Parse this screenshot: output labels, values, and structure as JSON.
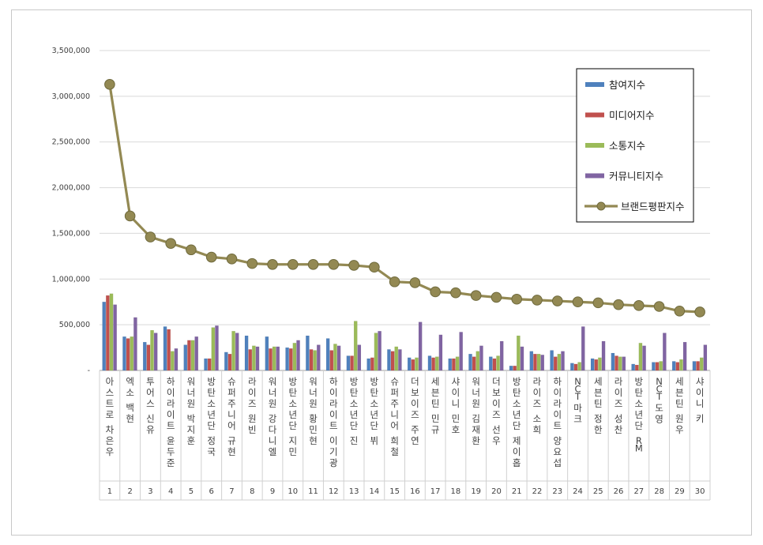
{
  "chart_data": {
    "type": "bar",
    "title": "",
    "xlabel": "",
    "ylabel": "",
    "ylim": [
      0,
      3500000
    ],
    "yticks": [
      0,
      500000,
      1000000,
      1500000,
      2000000,
      2500000,
      3000000,
      3500000
    ],
    "ytick_labels": [
      "-",
      "500,000",
      "1,000,000",
      "1,500,000",
      "2,000,000",
      "2,500,000",
      "3,000,000",
      "3,500,000"
    ],
    "grid": true,
    "legend_position": "top-right",
    "categories": [
      "1",
      "2",
      "3",
      "4",
      "5",
      "6",
      "7",
      "8",
      "9",
      "10",
      "11",
      "12",
      "13",
      "14",
      "15",
      "16",
      "17",
      "18",
      "19",
      "20",
      "21",
      "22",
      "23",
      "24",
      "25",
      "26",
      "27",
      "28",
      "29",
      "30"
    ],
    "names": [
      "아스트로 차은우",
      "엑소 백현",
      "투어스 신유",
      "하이라이트 윤두준",
      "워너원 박지훈",
      "방탄소년단 정국",
      "슈퍼주니어 규현",
      "라이즈 원빈",
      "워너원 강다니엘",
      "방탄소년단 지민",
      "워너원 황민현",
      "하이라이트 이기광",
      "방탄소년단 진",
      "방탄소년단 뷔",
      "슈퍼주니어 희철",
      "더보이즈 주연",
      "세븐틴 민규",
      "샤이니 민호",
      "워너원 김재환",
      "더보이즈 선우",
      "방탄소년단 제이홉",
      "라이즈 소희",
      "하이라이트 양요섭",
      "NCT 마크",
      "세븐틴 정한",
      "라이즈 성찬",
      "방탄소년단 RM",
      "NCT 도영",
      "세븐틴 원우",
      "샤이니 키"
    ],
    "series": [
      {
        "name": "참여지수",
        "color": "#4f81bd",
        "values": [
          750000,
          370000,
          310000,
          480000,
          280000,
          130000,
          200000,
          380000,
          370000,
          250000,
          380000,
          350000,
          160000,
          130000,
          230000,
          140000,
          160000,
          130000,
          180000,
          150000,
          50000,
          210000,
          220000,
          80000,
          130000,
          190000,
          70000,
          90000,
          100000,
          100000
        ]
      },
      {
        "name": "미디어지수",
        "color": "#c0504d",
        "values": [
          820000,
          350000,
          280000,
          450000,
          330000,
          130000,
          180000,
          230000,
          240000,
          240000,
          230000,
          220000,
          160000,
          140000,
          210000,
          120000,
          140000,
          130000,
          150000,
          130000,
          50000,
          180000,
          150000,
          70000,
          120000,
          160000,
          60000,
          90000,
          90000,
          100000
        ]
      },
      {
        "name": "소통지수",
        "color": "#9bbb59",
        "values": [
          840000,
          370000,
          440000,
          210000,
          330000,
          470000,
          430000,
          270000,
          260000,
          300000,
          220000,
          290000,
          540000,
          410000,
          260000,
          140000,
          150000,
          150000,
          210000,
          160000,
          380000,
          180000,
          180000,
          90000,
          140000,
          150000,
          300000,
          100000,
          120000,
          140000
        ]
      },
      {
        "name": "커뮤니티지수",
        "color": "#8064a2",
        "values": [
          720000,
          580000,
          410000,
          240000,
          370000,
          490000,
          410000,
          260000,
          260000,
          330000,
          280000,
          270000,
          280000,
          430000,
          230000,
          530000,
          390000,
          420000,
          270000,
          320000,
          260000,
          170000,
          210000,
          480000,
          320000,
          150000,
          270000,
          410000,
          310000,
          280000
        ]
      },
      {
        "name": "브랜드평판지수",
        "color": "#938953",
        "type": "line",
        "values": [
          3130000,
          1690000,
          1460000,
          1390000,
          1320000,
          1240000,
          1220000,
          1170000,
          1160000,
          1160000,
          1160000,
          1160000,
          1150000,
          1130000,
          970000,
          960000,
          860000,
          850000,
          820000,
          800000,
          780000,
          770000,
          760000,
          750000,
          740000,
          720000,
          710000,
          700000,
          650000,
          640000
        ]
      }
    ]
  }
}
